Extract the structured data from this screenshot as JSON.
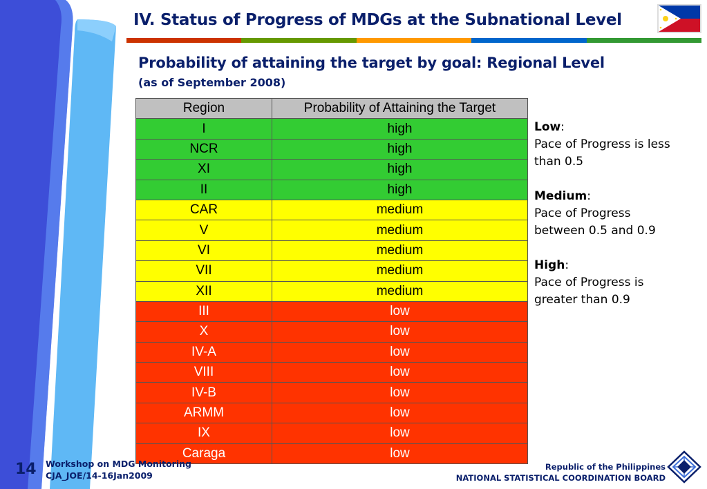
{
  "header": {
    "title": "IV.  Status of Progress of MDGs at the Subnational Level"
  },
  "rule_colors": [
    "#cc3300",
    "#669900",
    "#ff9900",
    "#0066cc",
    "#339933"
  ],
  "subtitle": "Probability of attaining the target by goal: Regional Level",
  "as_of": "(as of September 2008)",
  "table": {
    "headers": [
      "Region",
      "Probability of Attaining the Target"
    ],
    "rows": [
      {
        "region": "I",
        "level": "high"
      },
      {
        "region": "NCR",
        "level": "high"
      },
      {
        "region": "XI",
        "level": "high"
      },
      {
        "region": "II",
        "level": "high"
      },
      {
        "region": "CAR",
        "level": "medium"
      },
      {
        "region": "V",
        "level": "medium"
      },
      {
        "region": "VI",
        "level": "medium"
      },
      {
        "region": "VII",
        "level": "medium"
      },
      {
        "region": "XII",
        "level": "medium"
      },
      {
        "region": "III",
        "level": "low"
      },
      {
        "region": "X",
        "level": "low"
      },
      {
        "region": "IV-A",
        "level": "low"
      },
      {
        "region": "VIII",
        "level": "low"
      },
      {
        "region": "IV-B",
        "level": "low"
      },
      {
        "region": "ARMM",
        "level": "low"
      },
      {
        "region": "IX",
        "level": "low"
      },
      {
        "region": "Caraga",
        "level": "low"
      }
    ],
    "level_colors": {
      "high": "#33cc33",
      "medium": "#ffff00",
      "low": "#ff3300"
    }
  },
  "legend": {
    "low_label": "Low",
    "low_text": "Pace of Progress is less than 0.5",
    "medium_label": "Medium",
    "medium_text": "Pace of Progress between 0.5 and 0.9",
    "high_label": "High",
    "high_text": "Pace of Progress is greater than 0.9"
  },
  "footer": {
    "page_number": "14",
    "workshop": "Workshop on MDG Monitoring",
    "code": "CJA_JOE/14-16Jan2009",
    "org_line1": "Republic of the Philippines",
    "org_line2": "NATIONAL STATISTICAL COORDINATION BOARD"
  },
  "icons": {
    "flag": "philippine-flag-icon",
    "logo": "nscb-logo-icon"
  }
}
